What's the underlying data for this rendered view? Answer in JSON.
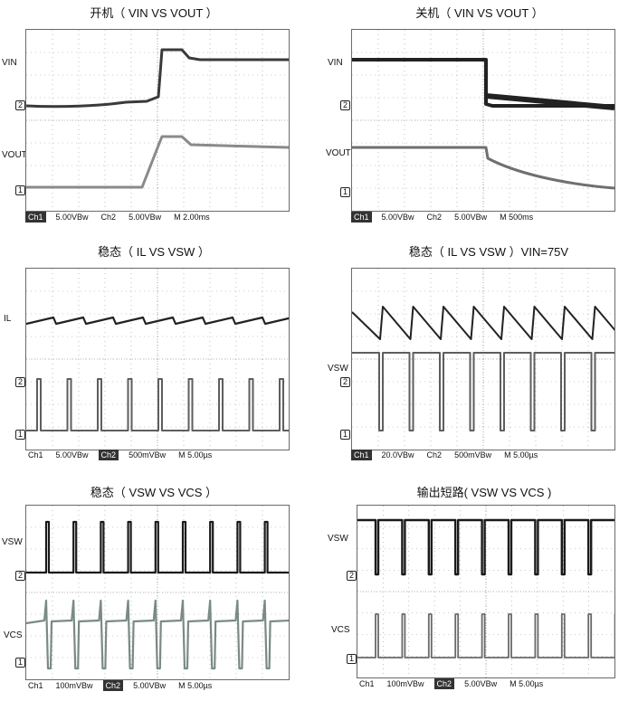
{
  "panels": [
    {
      "title": "开机（ VIN VS VOUT ）",
      "labels": [
        {
          "text": "VIN"
        },
        {
          "text": "VOUT"
        }
      ],
      "markers": [
        "2",
        "1"
      ],
      "status": {
        "ch1": "Ch1",
        "ch1_val": "5.00VBw",
        "ch2": "Ch2",
        "ch2_val": "5.00VBw",
        "time": "M 2.00ms",
        "highlight": "ch1"
      }
    },
    {
      "title": "关机（ VIN VS VOUT ）",
      "labels": [
        {
          "text": "VIN"
        },
        {
          "text": "VOUT"
        }
      ],
      "markers": [
        "2",
        "1"
      ],
      "status": {
        "ch1": "Ch1",
        "ch1_val": "5.00VBw",
        "ch2": "Ch2",
        "ch2_val": "5.00VBw",
        "time": "M 500ms",
        "highlight": "ch1"
      }
    },
    {
      "title": "稳态（ IL VS VSW ）",
      "labels": [
        {
          "text": "IL"
        }
      ],
      "markers": [
        "2",
        "1"
      ],
      "status": {
        "ch1": "Ch1",
        "ch1_val": "5.00VBw",
        "ch2": "Ch2",
        "ch2_val": "500mVBw",
        "time": "M 5.00µs",
        "highlight": "ch2"
      }
    },
    {
      "title": "稳态（ IL VS VSW ）VIN=75V",
      "labels": [
        {
          "text": "VSW"
        }
      ],
      "markers": [
        "2",
        "1"
      ],
      "status": {
        "ch1": "Ch1",
        "ch1_val": "20.0VBw",
        "ch2": "Ch2",
        "ch2_val": "500mVBw",
        "time": "M 5.00µs",
        "highlight": "ch1"
      }
    },
    {
      "title": "稳态（ VSW VS VCS ）",
      "labels": [
        {
          "text": "VSW"
        },
        {
          "text": "VCS"
        }
      ],
      "markers": [
        "2",
        "1"
      ],
      "status": {
        "ch1": "Ch1",
        "ch1_val": "100mVBw",
        "ch2": "Ch2",
        "ch2_val": "5.00VBw",
        "time": "M 5.00µs",
        "highlight": "ch2"
      }
    },
    {
      "title": "输出短路( VSW VS VCS )",
      "labels": [
        {
          "text": "VSW"
        },
        {
          "text": "VCS"
        }
      ],
      "markers": [
        "2",
        "1"
      ],
      "status": {
        "ch1": "Ch1",
        "ch1_val": "100mVBw",
        "ch2": "Ch2",
        "ch2_val": "5.00VBw",
        "time": "M 5.00µs",
        "highlight": "ch2"
      }
    }
  ]
}
